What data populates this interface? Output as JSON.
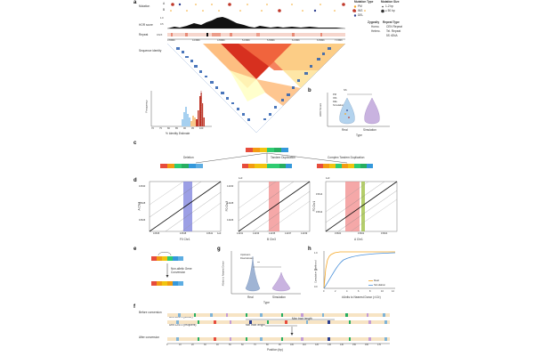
{
  "panel_a": {
    "label": "a",
    "track_mutation": "Mutation",
    "track_hor": "HOR score",
    "track_repeat": "Repeat",
    "track_identity": "Sequence identity",
    "chrom": "ChrX",
    "row_a": "A",
    "row_b": "B",
    "hor_ticks": [
      "1.0",
      "0.5"
    ],
    "coords": [
      "3.65Mb",
      "4.15Mb",
      "4.65Mb",
      "5.15Mb",
      "5.65Mb",
      "6.15Mb",
      "6.65Mb",
      "7.15Mb"
    ],
    "legend_mutation_title": "Mutation Type",
    "legend_mutation": [
      "PM",
      "INS",
      "DEL"
    ],
    "legend_size_title": "Mutation Size",
    "legend_size": [
      "1-2 bp",
      "≥ 50 bp"
    ],
    "legend_zyg_title": "Zygosity",
    "legend_zyg": [
      "Homo.",
      "Hetero."
    ],
    "legend_rep_title": "Repeat Type",
    "legend_rep": [
      "CEN Repeat",
      "Tel. Repeat",
      "5S rDNA"
    ],
    "colors": {
      "pm": "#f5a623",
      "ins": "#c0392b",
      "del": "#2c3e8f"
    }
  },
  "hist": {
    "ylabel": "Frequency",
    "xlabel": "% Identity Estimate",
    "xticks": [
      "70",
      "75",
      "80",
      "85",
      "90",
      "95",
      "100"
    ]
  },
  "panel_b": {
    "label": "b",
    "ylabel": "HOR Score",
    "xlabel": "Type",
    "categories": [
      "Real",
      "Simulation"
    ],
    "sig": "NS",
    "legend": [
      "PM",
      "INS",
      "DEL",
      "Simulation"
    ]
  },
  "panel_c": {
    "label": "c",
    "left_caption": "Deletion",
    "mid_caption": "Tandem Duplication",
    "right_caption": "Complex Tandem Duplication"
  },
  "panel_d": {
    "label": "d",
    "plot1": {
      "ylabel": "A Chr1",
      "xlabel": "F0 Chr1",
      "yticks": [
        "16630",
        "16628",
        "16626"
      ],
      "xticks": [
        "16635",
        "16638",
        "16641"
      ],
      "scale": "1e3"
    },
    "plot2": {
      "ylabel": "F0 Chr3",
      "xlabel": "B Chr3",
      "yticks": [
        "14230",
        "14228",
        "14226"
      ],
      "xticks": [
        "14231",
        "14233",
        "14235",
        "14237",
        "14239"
      ],
      "scale": "1e3"
    },
    "plot3": {
      "ylabel": "F0 Chr1",
      "xlabel": "A Chr1",
      "yticks": [
        "15614",
        "15612"
      ],
      "xticks": [
        "15600",
        "15602",
        "15604"
      ],
      "scale": "1e3"
    }
  },
  "panel_e": {
    "label": "e",
    "caption": "Non-allelic Gene Conversion"
  },
  "panel_g": {
    "label": "g",
    "ylabel": "#Units to Nearest Donor",
    "xlabel": "Type",
    "categories": [
      "Real",
      "Simulation"
    ],
    "sig": "***",
    "legend": [
      "Upstream",
      "Downstream"
    ]
  },
  "panel_h": {
    "label": "h",
    "ylabel": "Cumulative Likelihood",
    "xlabel": "#Units to Nearest Donor (×10²)",
    "xticks": [
      "0",
      "2",
      "4",
      "6",
      "8",
      "10",
      "12"
    ],
    "yticks": [
      "1.0",
      "0.5",
      "0.0"
    ],
    "legend": [
      "Real",
      "Simulation"
    ]
  },
  "panel_f": {
    "label": "f",
    "before": "Before conversion",
    "unit_donor": "Unit 12471 (donor)",
    "unit_recipient": "Unit 12472 (recipient)",
    "min_tract": "Min tract length",
    "max_tract": "Max tract length",
    "after": "After conversion",
    "xlabel": "Position (bp)",
    "xticks": [
      "0",
      "10",
      "20",
      "30",
      "40",
      "50",
      "60",
      "70",
      "80",
      "90",
      "100",
      "110",
      "120",
      "130",
      "140",
      "150",
      "160",
      "170"
    ]
  }
}
